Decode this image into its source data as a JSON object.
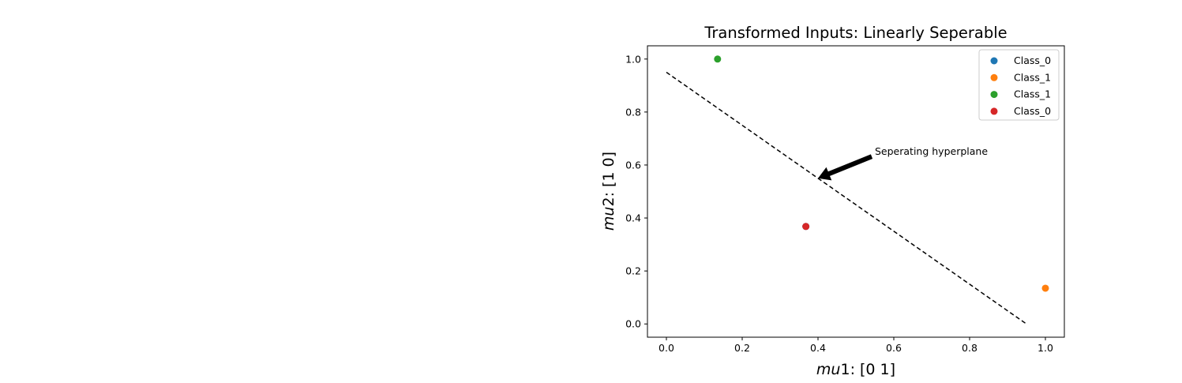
{
  "chart_data": {
    "type": "scatter",
    "title": "Transformed Inputs: Linearly Seperable",
    "xlabel_var": "mu",
    "xlabel_sub": "1",
    "xlabel_rest": ": [0 1]",
    "ylabel_var": "mu",
    "ylabel_sub": "2",
    "ylabel_rest": ": [1 0]",
    "xlim": [
      -0.05,
      1.05
    ],
    "ylim": [
      -0.05,
      1.05
    ],
    "xticks": [
      0.0,
      0.2,
      0.4,
      0.6,
      0.8,
      1.0
    ],
    "xtick_labels": [
      "0.0",
      "0.2",
      "0.4",
      "0.6",
      "0.8",
      "1.0"
    ],
    "yticks": [
      0.0,
      0.2,
      0.4,
      0.6,
      0.8,
      1.0
    ],
    "ytick_labels": [
      "0.0",
      "0.2",
      "0.4",
      "0.6",
      "0.8",
      "1.0"
    ],
    "grid": false,
    "legend_position": "top-right",
    "series": [
      {
        "name": "Class_0",
        "color": "#1f77b4",
        "points": [
          [
            0.368,
            0.368
          ]
        ]
      },
      {
        "name": "Class_1",
        "color": "#ff7f0e",
        "points": [
          [
            1.0,
            0.135
          ]
        ]
      },
      {
        "name": "Class_1",
        "color": "#2ca02c",
        "points": [
          [
            0.135,
            1.0
          ]
        ]
      },
      {
        "name": "Class_0",
        "color": "#d62728",
        "points": [
          [
            0.368,
            0.368
          ]
        ]
      }
    ],
    "line": {
      "x": [
        0.0,
        0.95
      ],
      "y": [
        0.95,
        0.0
      ],
      "style": "dashed",
      "color": "#000000"
    },
    "annotation": {
      "text": "Seperating hyperplane",
      "xy": [
        0.4,
        0.55
      ],
      "xytext": [
        0.55,
        0.65
      ]
    }
  }
}
